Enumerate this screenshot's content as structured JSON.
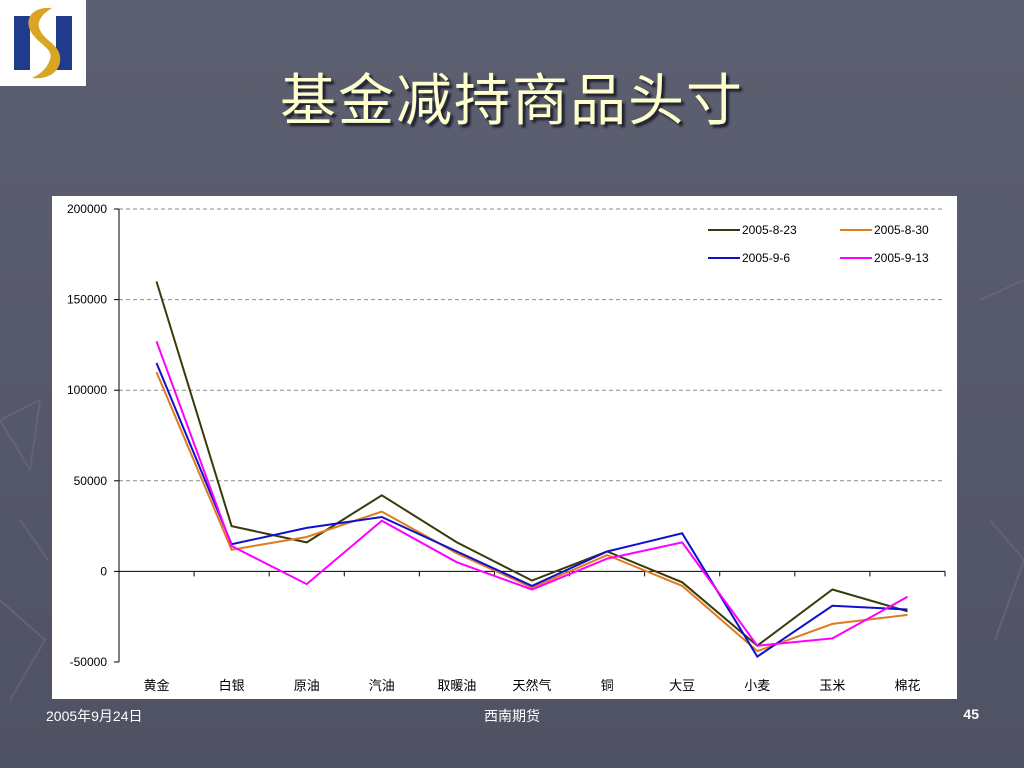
{
  "slide": {
    "title": "基金减持商品头寸",
    "footer_date": "2005年9月24日",
    "footer_org": "西南期货",
    "page_number": "45"
  },
  "colors": {
    "background": "#5d6070",
    "title": "#ffffcc",
    "logo_blue": "#1f3b8c",
    "logo_gold": "#d9a522"
  },
  "chart_data": {
    "type": "line",
    "title": "",
    "xlabel": "",
    "ylabel": "",
    "categories": [
      "黄金",
      "白银",
      "原油",
      "汽油",
      "取暖油",
      "天然气",
      "铜",
      "大豆",
      "小麦",
      "玉米",
      "棉花"
    ],
    "ylim": [
      -50000,
      200000
    ],
    "yticks": [
      -50000,
      0,
      50000,
      100000,
      150000,
      200000
    ],
    "ytick_labels": [
      "-50000",
      "0",
      "50000",
      "100000",
      "150000",
      "200000"
    ],
    "grid": "horizontal-dashed",
    "legend_position": "top-right",
    "series": [
      {
        "name": "2005-8-23",
        "color": "#3a3a0a",
        "values": [
          160000,
          25000,
          16000,
          42000,
          16000,
          -5000,
          11000,
          -6000,
          -41000,
          -10000,
          -22000
        ]
      },
      {
        "name": "2005-8-30",
        "color": "#e07b1f",
        "values": [
          110000,
          12000,
          19000,
          33000,
          10000,
          -9000,
          9000,
          -8000,
          -44000,
          -29000,
          -24000
        ]
      },
      {
        "name": "2005-9-6",
        "color": "#1010cc",
        "values": [
          115000,
          15000,
          24000,
          30000,
          11000,
          -8000,
          11000,
          21000,
          -47000,
          -19000,
          -21000
        ]
      },
      {
        "name": "2005-9-13",
        "color": "#ff00ff",
        "values": [
          127000,
          14000,
          -7000,
          28000,
          5000,
          -10000,
          7000,
          16000,
          -41000,
          -37000,
          -14000
        ]
      }
    ]
  }
}
